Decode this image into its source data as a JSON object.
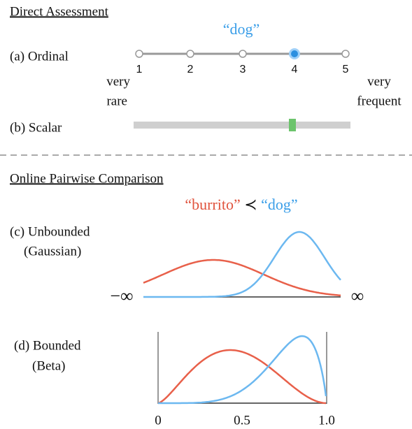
{
  "direct": {
    "title": "Direct Assessment",
    "word": "“dog”",
    "ordinal": {
      "label": "(a) Ordinal",
      "ticks": [
        "1",
        "2",
        "3",
        "4",
        "5"
      ]
    },
    "left_end": [
      "very",
      "rare"
    ],
    "right_end": [
      "very",
      "frequent"
    ],
    "scalar": {
      "label": "(b) Scalar"
    }
  },
  "pairwise": {
    "title": "Online Pairwise Comparison",
    "comparison": {
      "left": "“burrito”",
      "relation": "≺",
      "right": "“dog”"
    },
    "unbounded": {
      "label": [
        "(c) Unbounded",
        "(Gaussian)"
      ],
      "left_end": "−∞",
      "right_end": "∞"
    },
    "bounded": {
      "label": [
        "(d) Bounded",
        "(Beta)"
      ],
      "ticks": [
        "0",
        "0.5",
        "1.0"
      ]
    }
  }
}
